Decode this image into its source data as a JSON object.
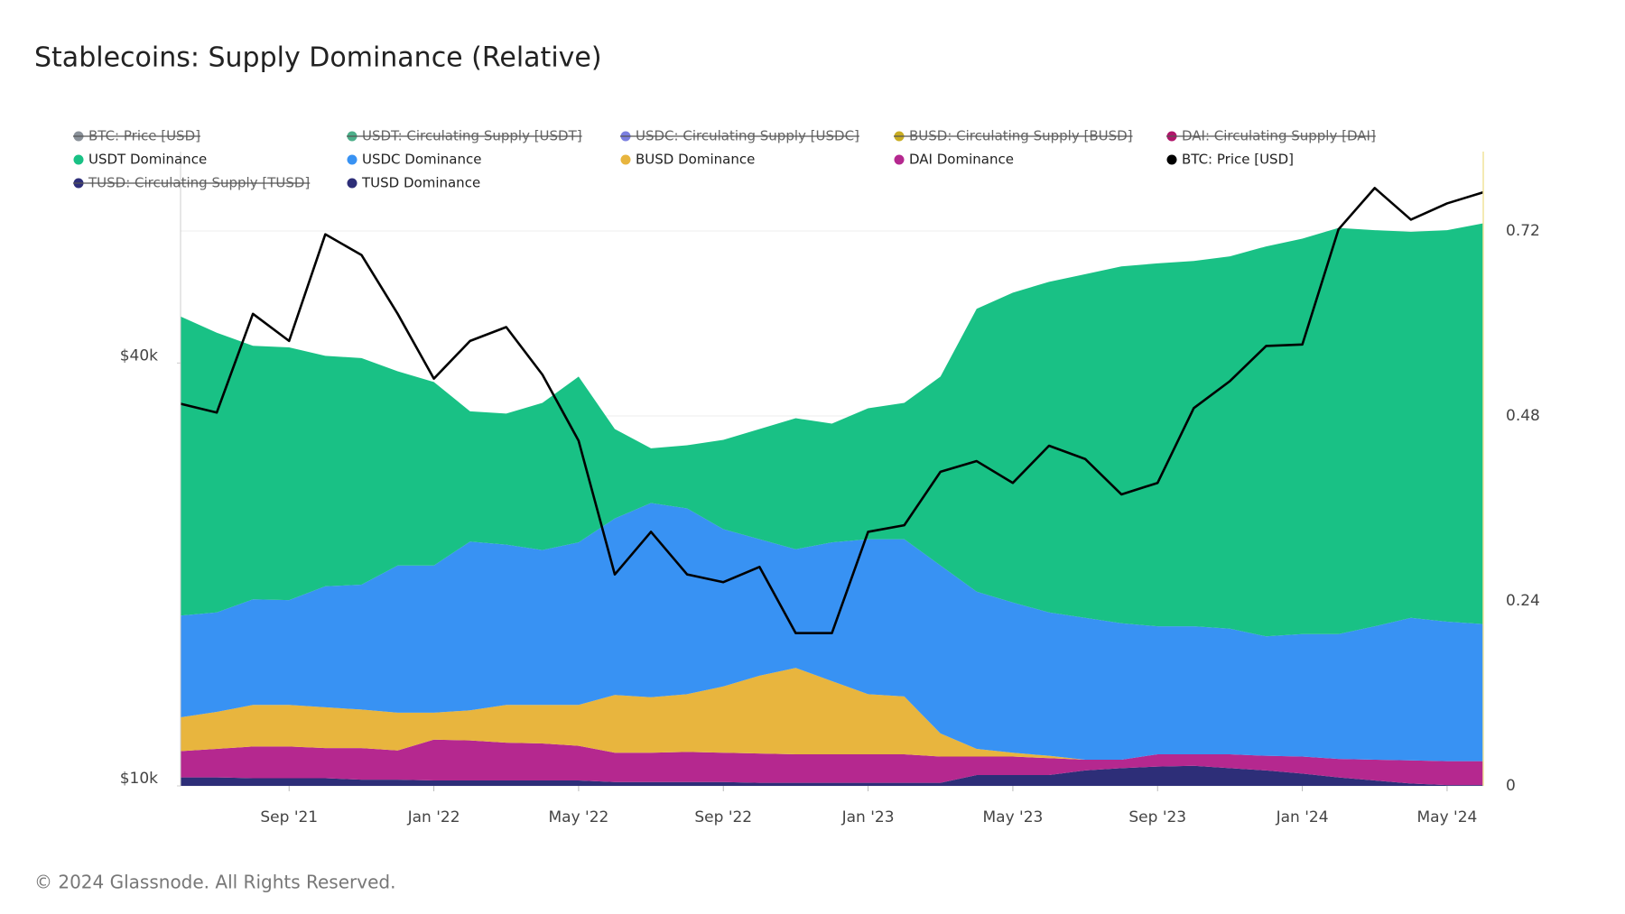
{
  "chart_data": {
    "type": "stacked_area_line",
    "title": "Stablecoins: Supply Dominance (Relative)",
    "footer": "© 2024 Glassnode. All Rights Reserved.",
    "categories": [
      null,
      null,
      null,
      "Sep '21",
      null,
      null,
      null,
      "Jan '22",
      null,
      null,
      null,
      "May '22",
      null,
      null,
      null,
      "Sep '22",
      null,
      null,
      null,
      "Jan '23",
      null,
      null,
      null,
      "May '23",
      null,
      null,
      null,
      "Sep '23",
      null,
      null,
      null,
      "Jan '24",
      null,
      null,
      null,
      "May '24",
      null
    ],
    "ylim": [
      10000,
      80000
    ],
    "yscale": "log",
    "yticks": [
      {
        "value": 10000,
        "label": "$10k"
      },
      {
        "value": 40000,
        "label": "$40k"
      }
    ],
    "y2lim": [
      0,
      0.823
    ],
    "y2ticks": [
      0,
      0.24,
      0.48,
      0.72
    ],
    "grid": true,
    "series": [
      {
        "name": "USDT Dominance",
        "color": "#19c185",
        "axis": "y2",
        "values": [
          0.388,
          0.363,
          0.329,
          0.328,
          0.299,
          0.294,
          0.252,
          0.238,
          0.169,
          0.17,
          0.191,
          0.215,
          0.116,
          0.071,
          0.082,
          0.116,
          0.143,
          0.17,
          0.154,
          0.17,
          0.177,
          0.245,
          0.367,
          0.402,
          0.429,
          0.446,
          0.463,
          0.471,
          0.474,
          0.483,
          0.506,
          0.513,
          0.527,
          0.514,
          0.501,
          0.508,
          0.52
        ]
      },
      {
        "name": "USDC Dominance",
        "color": "#3892f3",
        "axis": "y2",
        "values": [
          0.132,
          0.129,
          0.137,
          0.136,
          0.157,
          0.162,
          0.191,
          0.191,
          0.219,
          0.208,
          0.201,
          0.211,
          0.229,
          0.252,
          0.241,
          0.204,
          0.177,
          0.154,
          0.18,
          0.201,
          0.204,
          0.218,
          0.204,
          0.195,
          0.186,
          0.184,
          0.177,
          0.166,
          0.166,
          0.163,
          0.155,
          0.159,
          0.162,
          0.173,
          0.185,
          0.181,
          0.178
        ]
      },
      {
        "name": "BUSD Dominance",
        "color": "#e8b53e",
        "axis": "y2",
        "values": [
          0.044,
          0.048,
          0.054,
          0.054,
          0.053,
          0.05,
          0.049,
          0.035,
          0.039,
          0.049,
          0.05,
          0.053,
          0.075,
          0.072,
          0.075,
          0.086,
          0.101,
          0.112,
          0.095,
          0.078,
          0.075,
          0.03,
          0.01,
          0.005,
          0.003,
          0,
          0,
          0,
          0,
          0,
          0,
          0,
          0,
          0,
          0,
          0,
          0
        ]
      },
      {
        "name": "DAI Dominance",
        "color": "#b5288f",
        "axis": "y2",
        "values": [
          0.034,
          0.037,
          0.041,
          0.041,
          0.039,
          0.041,
          0.038,
          0.053,
          0.052,
          0.049,
          0.048,
          0.045,
          0.038,
          0.038,
          0.039,
          0.038,
          0.038,
          0.037,
          0.037,
          0.037,
          0.037,
          0.034,
          0.024,
          0.024,
          0.022,
          0.014,
          0.011,
          0.016,
          0.015,
          0.018,
          0.019,
          0.022,
          0.024,
          0.027,
          0.03,
          0.031,
          0.031
        ]
      },
      {
        "name": "BTC: Price [USD]",
        "color": "#000000",
        "axis": "y",
        "values": [
          35000,
          34000,
          47000,
          43000,
          61000,
          57000,
          47000,
          38000,
          43000,
          45000,
          38500,
          31000,
          20000,
          23000,
          20000,
          19500,
          20500,
          16500,
          16500,
          23000,
          23500,
          28000,
          29000,
          27000,
          30500,
          29200,
          26000,
          27000,
          34500,
          37700,
          42300,
          42500,
          62000,
          71000,
          64000,
          67500,
          70000
        ]
      },
      {
        "name": "TUSD Dominance",
        "color": "#2d2e78",
        "axis": "y2",
        "values": [
          0.011,
          0.011,
          0.01,
          0.01,
          0.01,
          0.008,
          0.008,
          0.007,
          0.007,
          0.007,
          0.007,
          0.007,
          0.005,
          0.005,
          0.005,
          0.005,
          0.004,
          0.004,
          0.004,
          0.004,
          0.004,
          0.004,
          0.014,
          0.014,
          0.014,
          0.02,
          0.023,
          0.025,
          0.026,
          0.023,
          0.02,
          0.016,
          0.011,
          0.007,
          0.003,
          0.001,
          0.001
        ]
      }
    ],
    "hidden_series": [
      {
        "name": "BTC: Price [USD]",
        "color": "#8a9199"
      },
      {
        "name": "USDT: Circulating Supply [USDT]",
        "color": "#4caf8a"
      },
      {
        "name": "USDC: Circulating Supply [USDC]",
        "color": "#7b7fe0"
      },
      {
        "name": "BUSD: Circulating Supply [BUSD]",
        "color": "#c9ad22"
      },
      {
        "name": "DAI: Circulating Supply [DAI]",
        "color": "#b0166a"
      },
      {
        "name": "TUSD: Circulating Supply [TUSD]",
        "color": "#2e2f7a"
      }
    ]
  }
}
